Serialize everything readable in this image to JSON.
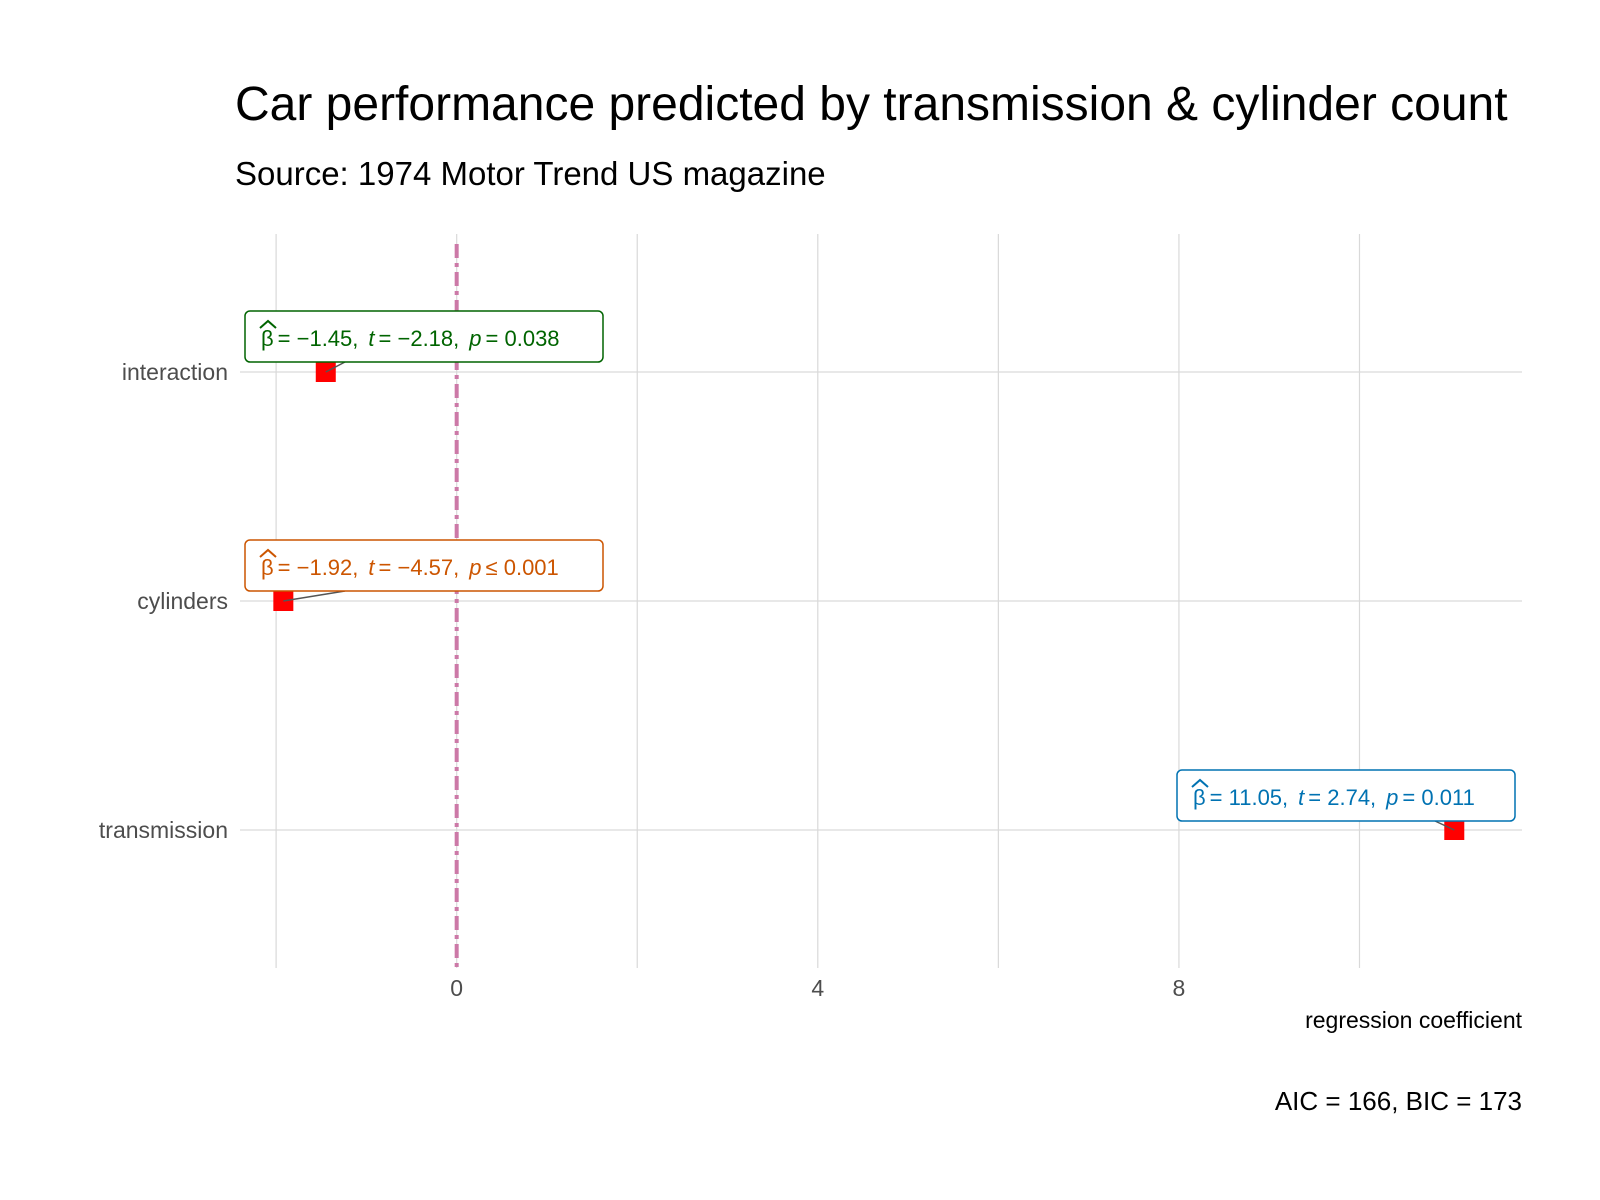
{
  "chart_data": {
    "type": "scatter",
    "title": "Car performance predicted by transmission & cylinder count",
    "subtitle": "Source: 1974 Motor Trend US magazine",
    "xlabel": "regression coefficient",
    "ylabel": "",
    "caption": "AIC = 166, BIC = 173",
    "xlim": [
      -2.4,
      11.8
    ],
    "x_ticks": [
      0,
      4,
      8
    ],
    "x_ticks_labels": [
      "0",
      "4",
      "8"
    ],
    "x_minor_gridlines": [
      -2,
      2,
      6,
      10
    ],
    "reference_line": {
      "x": 0,
      "style": "dashed",
      "color": "#cc79a7"
    },
    "categories": [
      "interaction",
      "cylinders",
      "transmission"
    ],
    "points": [
      {
        "term": "interaction",
        "estimate": -1.45,
        "beta_label": "= −1.45,",
        "t_label": "= −2.18,",
        "p_label": "= 0.038",
        "label_color": "#006400"
      },
      {
        "term": "cylinders",
        "estimate": -1.92,
        "beta_label": "= −1.92,",
        "t_label": "= −4.57,",
        "p_label": "≤ 0.001",
        "label_color": "#cc5500"
      },
      {
        "term": "transmission",
        "estimate": 11.05,
        "beta_label": "= 11.05,",
        "t_label": "= 2.74,",
        "p_label": "= 0.011",
        "label_color": "#0072b2"
      }
    ],
    "point_color": "#ff0000",
    "grid": true,
    "legend": "none"
  }
}
